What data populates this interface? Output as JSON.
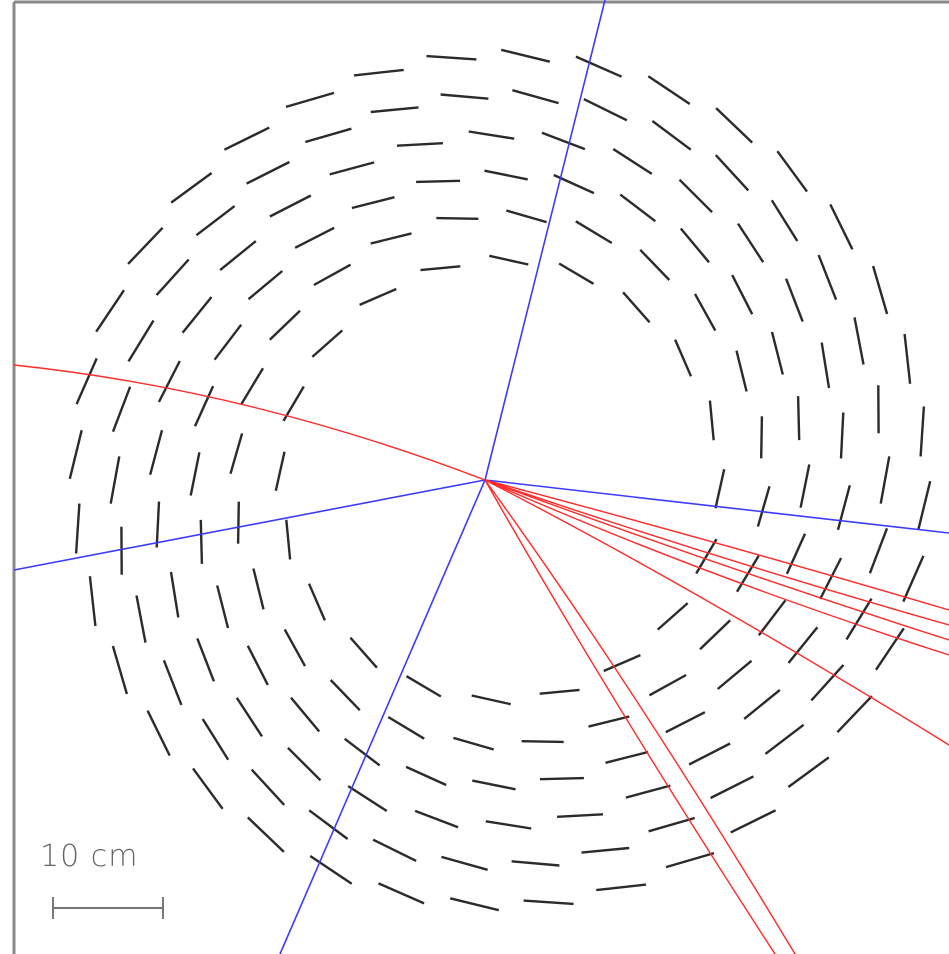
{
  "diagram": {
    "scale_bar": {
      "label": "10 cm"
    },
    "colors": {
      "detector_module": "#2b2b2b",
      "blue_track": "#3b3bff",
      "red_track": "#ff2a2a",
      "frame": "#8a8a8a",
      "scale": "#777777",
      "background": "#ffffff"
    },
    "detector": {
      "layers": 6,
      "description_icons": [
        "silicon-module"
      ]
    }
  }
}
